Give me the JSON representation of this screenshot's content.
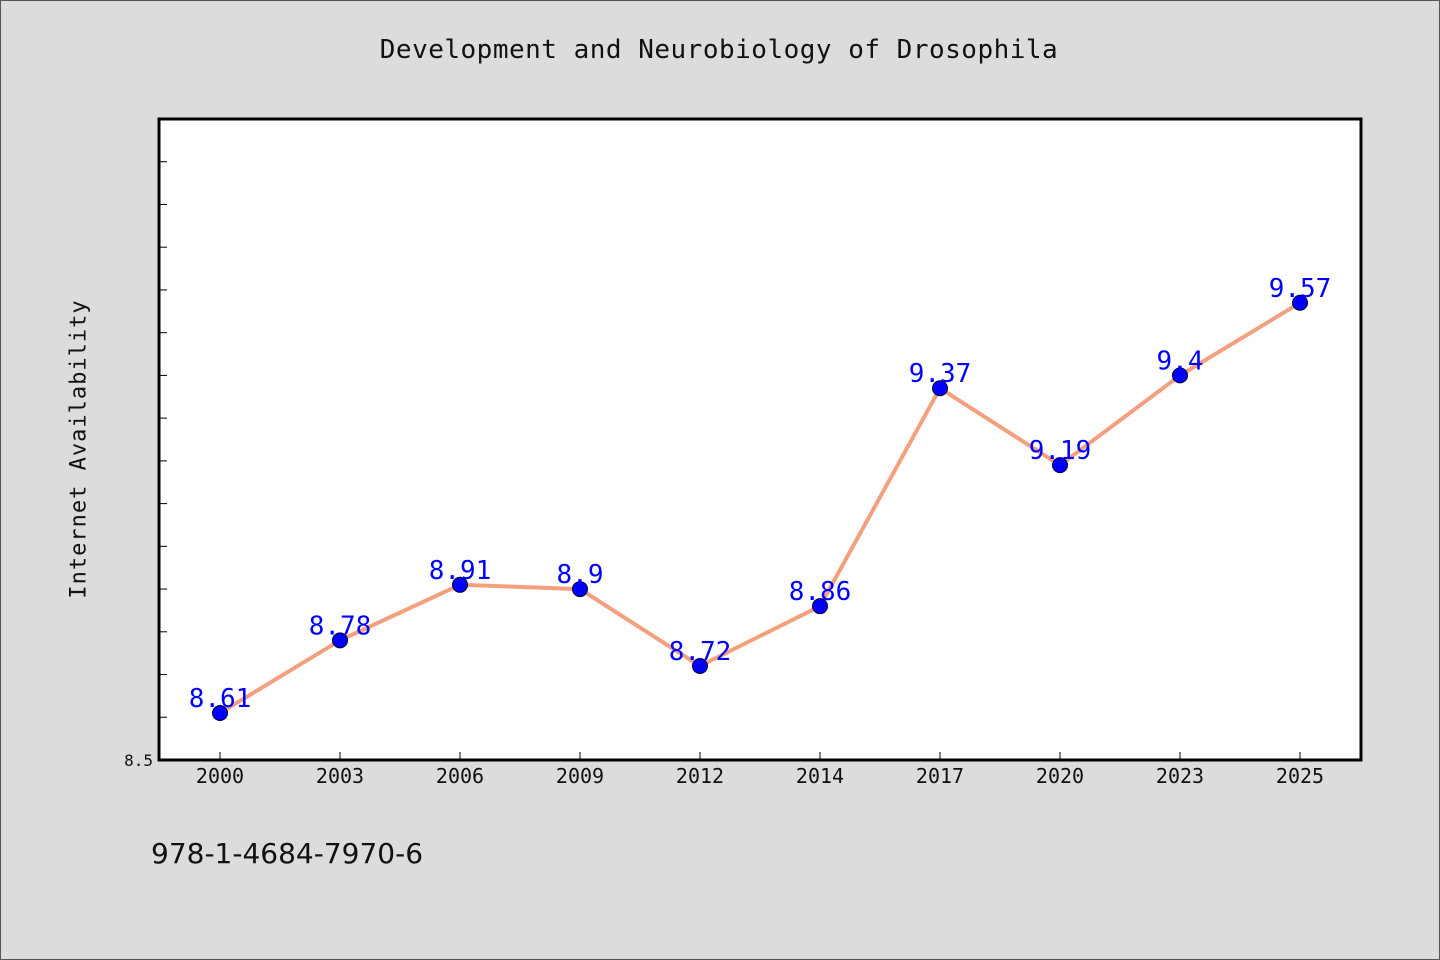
{
  "colors": {
    "background": "#dcdcdc",
    "plot_background": "#ffffff",
    "line": "#f4a07f",
    "marker": "#0000ff",
    "data_label": "#0000ff"
  },
  "footer": {
    "code": "978-1-4684-7970-6"
  },
  "chart_data": {
    "type": "line",
    "title": "Development and Neurobiology of Drosophila",
    "xlabel": "",
    "ylabel": "Internet Availability",
    "categories": [
      "2000",
      "2003",
      "2006",
      "2009",
      "2012",
      "2014",
      "2017",
      "2020",
      "2023",
      "2025"
    ],
    "series": [
      {
        "values": [
          8.61,
          8.78,
          8.91,
          8.9,
          8.72,
          8.86,
          9.37,
          9.19,
          9.4,
          9.57
        ]
      }
    ],
    "data_labels": [
      "8.61",
      "8.78",
      "8.91",
      "8.9",
      "8.72",
      "8.86",
      "9.37",
      "9.19",
      "9.4",
      "9.57"
    ],
    "ylim": [
      8.5,
      10.0
    ],
    "ytick_step": 0.1,
    "yticklabels_shown": [
      "8.5"
    ],
    "grid": false,
    "legend": "none"
  }
}
